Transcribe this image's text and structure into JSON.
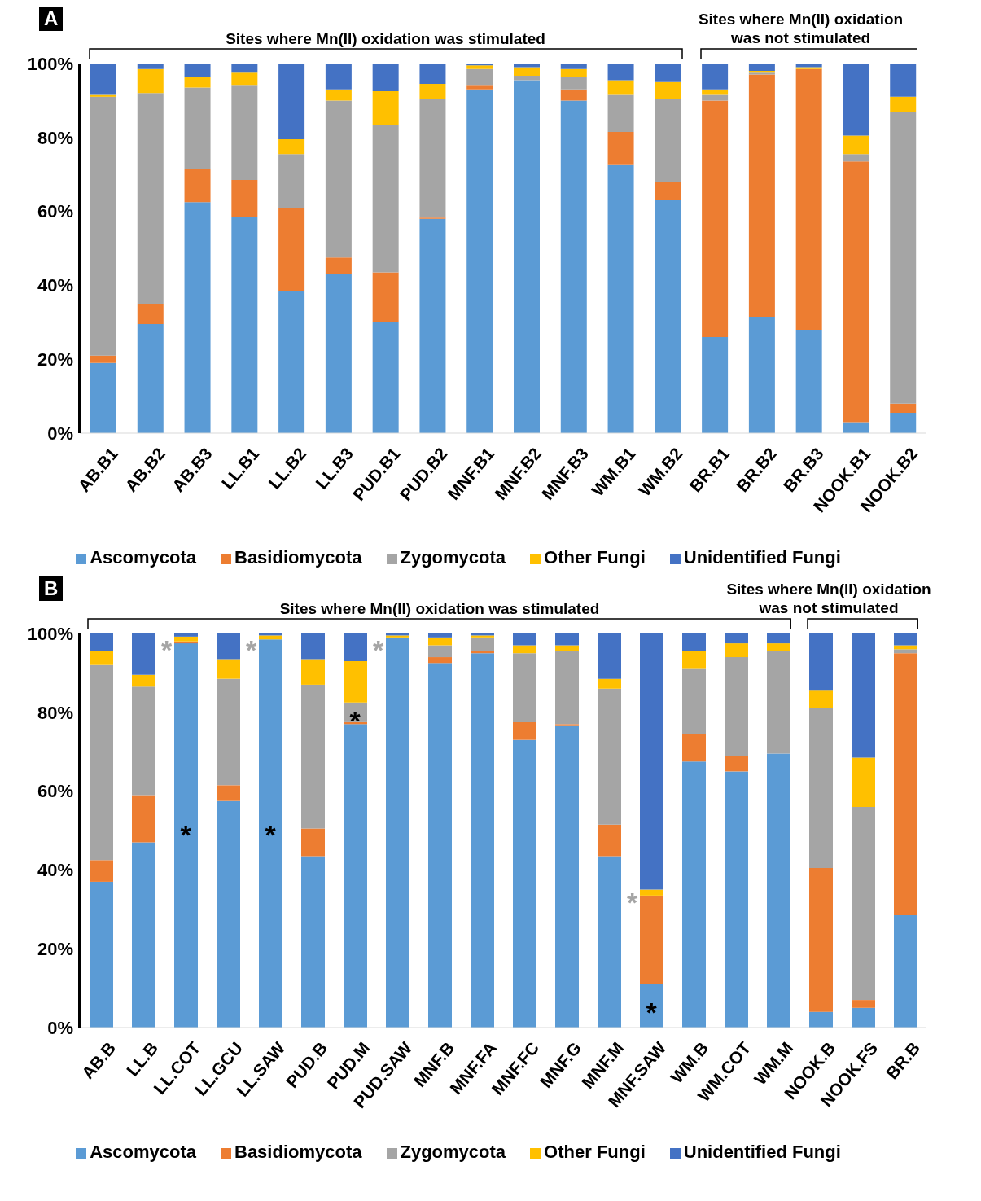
{
  "chart_data": [
    {
      "type": "bar",
      "title": "A",
      "stacked": true,
      "legend": "bottom",
      "grid": false,
      "categories": [
        "AB.B1",
        "AB.B2",
        "AB.B3",
        "LL.B1",
        "LL.B2",
        "LL.B3",
        "PUD.B1",
        "PUD.B2",
        "MNF.B1",
        "MNF.B2",
        "MNF.B3",
        "WM.B1",
        "WM.B2",
        "BR.B1",
        "BR.B2",
        "BR.B3",
        "NOOK.B1",
        "NOOK.B2"
      ],
      "ylim": [
        0,
        100
      ],
      "yticks": [
        {
          "value": 0,
          "label": "0%"
        },
        {
          "value": 20,
          "label": "20%"
        },
        {
          "value": 40,
          "label": "40%"
        },
        {
          "value": 60,
          "label": "60%"
        },
        {
          "value": 80,
          "label": "80%"
        },
        {
          "value": 100,
          "label": "100%"
        }
      ],
      "annotations": [
        "Sites where Mn(II) oxidation was stimulated",
        "Sites where Mn(II) oxidation was not stimulated"
      ],
      "series": [
        {
          "name": "Ascomycota",
          "color": "#5b9bd5",
          "values": [
            19,
            29.5,
            62.5,
            58.5,
            38.5,
            43,
            30,
            58,
            93,
            95.5,
            90,
            72.5,
            63,
            26,
            31.5,
            28,
            3,
            5.5
          ]
        },
        {
          "name": "Basidiomycota",
          "color": "#ed7d31",
          "values": [
            2,
            5.5,
            9,
            10,
            22.5,
            4.5,
            13.5,
            0.3,
            1,
            0,
            3,
            9,
            5,
            64,
            65.5,
            70.5,
            70.5,
            2.5
          ]
        },
        {
          "name": "Zygomycota",
          "color": "#a5a5a5",
          "values": [
            70,
            57,
            22,
            25.5,
            14.5,
            42.5,
            40,
            32,
            4.5,
            1.2,
            3.5,
            10,
            22.5,
            1.5,
            0.5,
            0,
            2,
            79
          ]
        },
        {
          "name": "Other Fungi",
          "color": "#ffc000",
          "values": [
            0.5,
            6.5,
            3,
            3.5,
            4,
            3,
            9,
            4.2,
            1,
            2.3,
            2,
            4,
            4.5,
            1.5,
            0.5,
            0.5,
            5,
            4
          ]
        },
        {
          "name": "Unidentified Fungi",
          "color": "#4472c4",
          "values": [
            8.5,
            1.5,
            3.5,
            2.5,
            20.5,
            7,
            7.5,
            5.5,
            0.5,
            1,
            1.5,
            4.5,
            5,
            7,
            2,
            1,
            19.5,
            9
          ]
        }
      ]
    },
    {
      "type": "bar",
      "title": "B",
      "stacked": true,
      "legend": "bottom",
      "grid": false,
      "categories": [
        "AB.B",
        "LL.B",
        "LL.COT",
        "LL.GCU",
        "LL.SAW",
        "PUD.B",
        "PUD.M",
        "PUD.SAW",
        "MNF.B",
        "MNF.FA",
        "MNF.FC",
        "MNF.G",
        "MNF.M",
        "MNF.SAW",
        "WM.B",
        "WM.COT",
        "WM.M",
        "NOOK.B",
        "NOOK.FS",
        "BR.B"
      ],
      "ylim": [
        0,
        100
      ],
      "yticks": [
        {
          "value": 0,
          "label": "0%"
        },
        {
          "value": 20,
          "label": "20%"
        },
        {
          "value": 40,
          "label": "40%"
        },
        {
          "value": 60,
          "label": "60%"
        },
        {
          "value": 80,
          "label": "80%"
        },
        {
          "value": 100,
          "label": "100%"
        }
      ],
      "annotations": [
        "Sites where Mn(II) oxidation was stimulated",
        "Sites where Mn(II) oxidation was not stimulated",
        {
          "text": "*",
          "x": "LL.COT",
          "y": 98
        },
        {
          "text": "*",
          "x": "LL.COT",
          "y": 51
        },
        {
          "text": "*",
          "x": "LL.SAW",
          "y": 98
        },
        {
          "text": "*",
          "x": "LL.SAW",
          "y": 51
        },
        {
          "text": "*",
          "x": "PUD.M",
          "y": 80
        },
        {
          "text": "*",
          "x": "PUD.SAW",
          "y": 98
        },
        {
          "text": "*",
          "x": "MNF.SAW",
          "y": 34
        },
        {
          "text": "*",
          "x": "MNF.SAW",
          "y": 6
        }
      ],
      "series": [
        {
          "name": "Ascomycota",
          "color": "#5b9bd5",
          "values": [
            37,
            47,
            97.5,
            57.5,
            98.5,
            43.5,
            77,
            99,
            92.5,
            95,
            73,
            76.5,
            43.5,
            11,
            67.5,
            65,
            69.5,
            4,
            5,
            28.5
          ]
        },
        {
          "name": "Basidiomycota",
          "color": "#ed7d31",
          "values": [
            5.5,
            12,
            0.5,
            4,
            0,
            7,
            0.5,
            0,
            1.5,
            0.5,
            4.5,
            0.5,
            8,
            22.5,
            7,
            4,
            0,
            36.5,
            2,
            66.5
          ]
        },
        {
          "name": "Zygomycota",
          "color": "#a5a5a5",
          "values": [
            49.5,
            27.5,
            0,
            27,
            0,
            36.5,
            5,
            0,
            3,
            3.5,
            17.5,
            18.5,
            34.5,
            0,
            16.5,
            25,
            26,
            40.5,
            49,
            1
          ]
        },
        {
          "name": "Other Fungi",
          "color": "#ffc000",
          "values": [
            3.5,
            3,
            1.2,
            5,
            1,
            6.5,
            10.5,
            0.5,
            2,
            0.5,
            2,
            1.5,
            2.5,
            1.5,
            4.5,
            3.5,
            2,
            4.5,
            12.5,
            1
          ]
        },
        {
          "name": "Unidentified Fungi",
          "color": "#4472c4",
          "values": [
            4.5,
            10.5,
            0.8,
            6.5,
            0.5,
            6.5,
            7,
            0.5,
            1,
            0.5,
            3,
            3,
            11.5,
            65,
            4.5,
            2.5,
            2.5,
            14.5,
            31.5,
            3
          ]
        }
      ]
    }
  ]
}
